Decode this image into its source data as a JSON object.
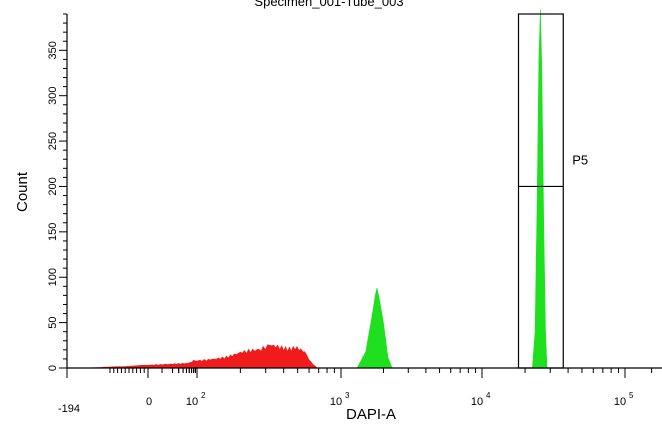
{
  "chart_data": {
    "type": "histogram",
    "title": "Specimen_001-Tube_003",
    "xlabel": "DAPI-A",
    "ylabel": "Count",
    "x_scale": "biexponential",
    "xlim": [
      -194,
      262144
    ],
    "ylim": [
      0,
      390
    ],
    "y_ticks": [
      0,
      50,
      100,
      150,
      200,
      250,
      300,
      350
    ],
    "x_tick_labels": [
      {
        "value": -194,
        "label": "-194"
      },
      {
        "value": 0,
        "label": "0"
      },
      {
        "value": 100,
        "label": "10",
        "exp": "2"
      },
      {
        "value": 1000,
        "label": "10",
        "exp": "3"
      },
      {
        "value": 10000,
        "label": "10",
        "exp": "4"
      },
      {
        "value": 100000,
        "label": "10",
        "exp": "5"
      }
    ],
    "series": [
      {
        "color": "#f01c1c",
        "points": [
          [
            -150,
            0
          ],
          [
            -100,
            1
          ],
          [
            -50,
            2
          ],
          [
            0,
            3
          ],
          [
            20,
            4
          ],
          [
            50,
            5
          ],
          [
            80,
            8
          ],
          [
            120,
            10
          ],
          [
            160,
            13
          ],
          [
            200,
            18
          ],
          [
            260,
            22
          ],
          [
            320,
            24
          ],
          [
            400,
            22
          ],
          [
            480,
            24
          ],
          [
            560,
            16
          ],
          [
            620,
            6
          ],
          [
            680,
            0
          ]
        ],
        "jitter": true
      },
      {
        "color": "#1ee01e",
        "points": [
          [
            1300,
            0
          ],
          [
            1500,
            18
          ],
          [
            1650,
            55
          ],
          [
            1750,
            80
          ],
          [
            1800,
            88
          ],
          [
            1860,
            78
          ],
          [
            2000,
            50
          ],
          [
            2150,
            12
          ],
          [
            2300,
            0
          ]
        ]
      },
      {
        "color": "#1ee01e",
        "points": [
          [
            22500,
            0
          ],
          [
            23500,
            40
          ],
          [
            24300,
            180
          ],
          [
            25000,
            340
          ],
          [
            25600,
            395
          ],
          [
            26200,
            330
          ],
          [
            27000,
            160
          ],
          [
            27800,
            40
          ],
          [
            28500,
            0
          ]
        ]
      }
    ],
    "gates": [
      {
        "name": "P5",
        "x_min": 18000,
        "x_max": 37000,
        "y_min": 0,
        "y_max": 390,
        "label_y": 200
      }
    ]
  }
}
